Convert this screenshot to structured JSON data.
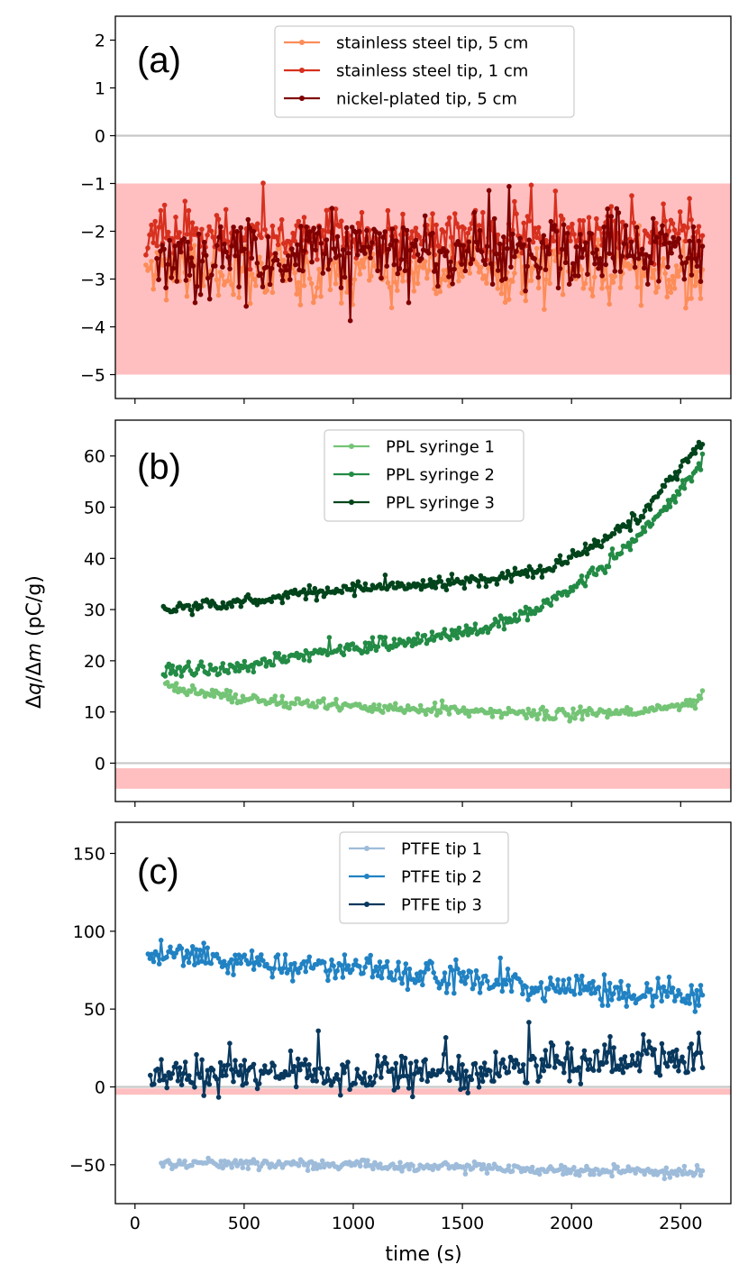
{
  "chart_data": [
    {
      "type": "line",
      "panel_label": "(a)",
      "x_range": [
        -90,
        2730
      ],
      "ylim": [
        -5.5,
        2.5
      ],
      "yticks": [
        -5,
        -4,
        -3,
        -2,
        -1,
        0,
        1,
        2
      ],
      "ytick_labels": [
        "−5",
        "−4",
        "−3",
        "−2",
        "−1",
        "0",
        "1",
        "2"
      ],
      "reference_line": 0,
      "shaded_band": [
        -5,
        -1
      ],
      "legend_position": "top-center",
      "series": [
        {
          "name": "stainless steel tip, 5 cm",
          "color": "#fc8d59",
          "seed": 11,
          "x_start": 50,
          "x_end": 2600,
          "trend": [
            [
              50,
              -2.8
            ],
            [
              1300,
              -2.8
            ],
            [
              2600,
              -2.9
            ]
          ],
          "noise": 0.45
        },
        {
          "name": "stainless steel tip, 1 cm",
          "color": "#d7301f",
          "seed": 23,
          "x_start": 50,
          "x_end": 2600,
          "trend": [
            [
              50,
              -2.1
            ],
            [
              1300,
              -2.1
            ],
            [
              2600,
              -2.1
            ]
          ],
          "noise": 0.4
        },
        {
          "name": "nickel-plated tip, 5 cm",
          "color": "#7f0000",
          "seed": 37,
          "x_start": 100,
          "x_end": 2600,
          "trend": [
            [
              100,
              -2.6
            ],
            [
              1300,
              -2.5
            ],
            [
              2600,
              -2.4
            ]
          ],
          "noise": 0.55
        }
      ]
    },
    {
      "type": "line",
      "panel_label": "(b)",
      "x_range": [
        -90,
        2730
      ],
      "ylim": [
        -7.5,
        67
      ],
      "yticks": [
        0,
        10,
        20,
        30,
        40,
        50,
        60
      ],
      "ytick_labels": [
        "0",
        "10",
        "20",
        "30",
        "40",
        "50",
        "60"
      ],
      "reference_line": 0,
      "shaded_band": [
        -5,
        -1
      ],
      "legend_position": "top-center",
      "series": [
        {
          "name": "PPL syringe 1",
          "color": "#74c476",
          "seed": 41,
          "x_start": 140,
          "x_end": 2600,
          "trend": [
            [
              140,
              15
            ],
            [
              500,
              12.5
            ],
            [
              1000,
              11
            ],
            [
              1500,
              10.2
            ],
            [
              2000,
              9.5
            ],
            [
              2300,
              10
            ],
            [
              2600,
              12
            ]
          ],
          "noise": 0.8
        },
        {
          "name": "PPL syringe 2",
          "color": "#238b45",
          "seed": 53,
          "x_start": 130,
          "x_end": 2600,
          "trend": [
            [
              130,
              18
            ],
            [
              400,
              18.5
            ],
            [
              700,
              20.5
            ],
            [
              1000,
              22.5
            ],
            [
              1300,
              24
            ],
            [
              1600,
              26.5
            ],
            [
              1800,
              29
            ],
            [
              2000,
              34
            ],
            [
              2200,
              40
            ],
            [
              2400,
              48
            ],
            [
              2600,
              59
            ]
          ],
          "noise": 0.9
        },
        {
          "name": "PPL syringe 3",
          "color": "#00441b",
          "seed": 67,
          "x_start": 130,
          "x_end": 2600,
          "trend": [
            [
              130,
              30
            ],
            [
              400,
              31
            ],
            [
              700,
              32.5
            ],
            [
              1000,
              34
            ],
            [
              1300,
              35
            ],
            [
              1600,
              36
            ],
            [
              1900,
              38
            ],
            [
              2100,
              42
            ],
            [
              2300,
              48
            ],
            [
              2450,
              55
            ],
            [
              2600,
              63
            ]
          ],
          "noise": 0.9
        }
      ]
    },
    {
      "type": "line",
      "panel_label": "(c)",
      "x_range": [
        -90,
        2730
      ],
      "ylim": [
        -75,
        170
      ],
      "yticks": [
        -50,
        0,
        50,
        100,
        150
      ],
      "ytick_labels": [
        "−50",
        "0",
        "50",
        "100",
        "150"
      ],
      "reference_line": 0,
      "shaded_band": [
        -5,
        -1
      ],
      "legend_position": "top-center",
      "series": [
        {
          "name": "PTFE tip 1",
          "color": "#9ebcda",
          "seed": 71,
          "x_start": 120,
          "x_end": 2600,
          "trend": [
            [
              120,
              -49
            ],
            [
              1300,
              -51
            ],
            [
              2600,
              -55
            ]
          ],
          "noise": 2.2
        },
        {
          "name": "PTFE tip 2",
          "color": "#2182c3",
          "seed": 83,
          "x_start": 60,
          "x_end": 2600,
          "trend": [
            [
              60,
              85
            ],
            [
              500,
              80
            ],
            [
              1000,
              75
            ],
            [
              1500,
              70
            ],
            [
              2000,
              64
            ],
            [
              2600,
              58
            ]
          ],
          "noise": 7
        },
        {
          "name": "PTFE tip 3",
          "color": "#08385e",
          "seed": 97,
          "x_start": 70,
          "x_end": 2600,
          "trend": [
            [
              70,
              6
            ],
            [
              800,
              9
            ],
            [
              1300,
              9
            ],
            [
              2000,
              16
            ],
            [
              2600,
              20
            ]
          ],
          "noise": 9
        }
      ]
    }
  ],
  "xticks": [
    0,
    500,
    1000,
    1500,
    2000,
    2500
  ],
  "xlabel": "time (s)",
  "ylabel": "Δq/Δm (pC/g)",
  "colors": {
    "band": "#ffbfc0",
    "zero_line": "#c8c8c8",
    "axes": "#000000"
  }
}
